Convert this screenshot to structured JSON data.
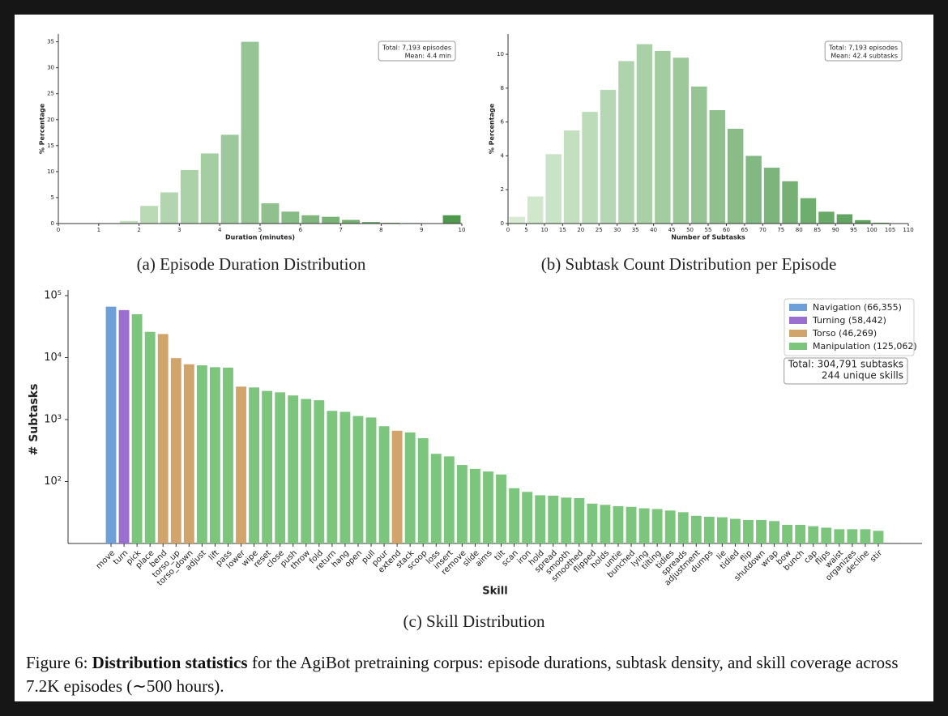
{
  "chart_data": [
    {
      "type": "histogram",
      "subcaption": "(a) Episode Duration Distribution",
      "xlabel": "Duration (minutes)",
      "ylabel": "% Percentage",
      "bins": [
        0,
        0.5,
        1,
        1.5,
        2,
        2.5,
        3,
        3.5,
        4,
        4.5,
        5,
        5.5,
        6,
        6.5,
        7,
        7.5,
        8,
        8.5,
        9,
        9.5,
        10
      ],
      "values": [
        0,
        0,
        0,
        0.5,
        3.4,
        6.0,
        10.3,
        13.5,
        17.1,
        35,
        3.9,
        2.3,
        1.6,
        1.3,
        0.7,
        0.3,
        0.15,
        0.1,
        0.05,
        1.6
      ],
      "colormap": [
        "#d6ebd2",
        "#4f994f"
      ],
      "xlim": [
        0,
        10
      ],
      "xticks": [
        0,
        1,
        2,
        3,
        4,
        5,
        6,
        7,
        8,
        9,
        10
      ],
      "ylim": [
        0,
        36.5
      ],
      "yticks": [
        0,
        5,
        10,
        15,
        20,
        25,
        30,
        35
      ],
      "annotation": [
        "Total: 7,193 episodes",
        "Mean: 4.4 min"
      ]
    },
    {
      "type": "histogram",
      "subcaption": "(b) Subtask Count Distribution per Episode",
      "xlabel": "Number of Subtasks",
      "ylabel": "% Percentage",
      "bins": [
        0,
        5,
        10,
        15,
        20,
        25,
        30,
        35,
        40,
        45,
        50,
        55,
        60,
        65,
        70,
        75,
        80,
        85,
        90,
        95,
        100,
        105,
        110
      ],
      "values": [
        0.4,
        1.6,
        4.1,
        5.5,
        6.6,
        7.9,
        9.6,
        10.6,
        10.2,
        9.8,
        8.1,
        6.7,
        5.6,
        4.0,
        3.3,
        2.5,
        1.5,
        0.7,
        0.55,
        0.2,
        0.05,
        0
      ],
      "colormap": [
        "#d6ebd2",
        "#4f994f"
      ],
      "xlim": [
        0,
        110
      ],
      "xticks": [
        0,
        5,
        10,
        15,
        20,
        25,
        30,
        35,
        40,
        45,
        50,
        55,
        60,
        65,
        70,
        75,
        80,
        85,
        90,
        95,
        100,
        105,
        110
      ],
      "ylim": [
        0,
        11.2
      ],
      "yticks": [
        0,
        2,
        4,
        6,
        8,
        10
      ],
      "annotation": [
        "Total: 7,193 episodes",
        "Mean: 42.4 subtasks"
      ]
    },
    {
      "type": "bar",
      "subcaption": "(c) Skill Distribution",
      "xlabel": "Skill",
      "ylabel": "# Subtasks",
      "log_scale": true,
      "categories": [
        "move",
        "turn",
        "pick",
        "place",
        "bend",
        "torso_up",
        "torso_down",
        "adjust",
        "lift",
        "pass",
        "lower",
        "wipe",
        "reset",
        "close",
        "push",
        "throw",
        "fold",
        "return",
        "hang",
        "open",
        "pull",
        "pour",
        "extend",
        "stack",
        "scoop",
        "loss",
        "insert",
        "remove",
        "slide",
        "aims",
        "tilt",
        "scan",
        "iron",
        "hold",
        "spread",
        "smooth",
        "smoothed",
        "flipped",
        "holds",
        "untie",
        "bunched",
        "lying",
        "tilting",
        "tidies",
        "spreads",
        "adjustment",
        "dumps",
        "lie",
        "tidied",
        "flip",
        "shutdown",
        "wrap",
        "bow",
        "bunch",
        "cap",
        "flips",
        "waist",
        "organizes",
        "decline",
        "stir"
      ],
      "values": [
        66355,
        58442,
        50000,
        26000,
        24000,
        9800,
        7800,
        7500,
        7000,
        6900,
        3400,
        3300,
        2900,
        2750,
        2450,
        2150,
        2050,
        1380,
        1330,
        1140,
        1080,
        780,
        660,
        620,
        500,
        280,
        255,
        185,
        160,
        145,
        130,
        78,
        68,
        60,
        59,
        55,
        54,
        44,
        42,
        40,
        39,
        37,
        36,
        34,
        32,
        28,
        27,
        26.5,
        25,
        24,
        24,
        23,
        20,
        20,
        19,
        18,
        17,
        17,
        17,
        16
      ],
      "colors": [
        "#6f9fd8",
        "#9b6fd0",
        "#7cc57c",
        "#7cc57c",
        "#d1a46c",
        "#d1a46c",
        "#d1a46c",
        "#7cc57c",
        "#7cc57c",
        "#7cc57c",
        "#d1a46c",
        "#7cc57c",
        "#7cc57c",
        "#7cc57c",
        "#7cc57c",
        "#7cc57c",
        "#7cc57c",
        "#7cc57c",
        "#7cc57c",
        "#7cc57c",
        "#7cc57c",
        "#7cc57c",
        "#d1a46c",
        "#7cc57c",
        "#7cc57c",
        "#7cc57c",
        "#7cc57c",
        "#7cc57c",
        "#7cc57c",
        "#7cc57c",
        "#7cc57c",
        "#7cc57c",
        "#7cc57c",
        "#7cc57c",
        "#7cc57c",
        "#7cc57c",
        "#7cc57c",
        "#7cc57c",
        "#7cc57c",
        "#7cc57c",
        "#7cc57c",
        "#7cc57c",
        "#7cc57c",
        "#7cc57c",
        "#7cc57c",
        "#7cc57c",
        "#7cc57c",
        "#7cc57c",
        "#7cc57c",
        "#7cc57c",
        "#7cc57c",
        "#7cc57c",
        "#7cc57c",
        "#7cc57c",
        "#7cc57c",
        "#7cc57c",
        "#7cc57c",
        "#7cc57c",
        "#7cc57c",
        "#7cc57c"
      ],
      "ylim": [
        10,
        100000
      ],
      "yticks": [
        {
          "value": 100,
          "label": "10²"
        },
        {
          "value": 1000,
          "label": "10³"
        },
        {
          "value": 10000,
          "label": "10⁴"
        },
        {
          "value": 100000,
          "label": "10⁵"
        }
      ],
      "legend": [
        {
          "name": "Navigation (66,355)",
          "color": "#6f9fd8"
        },
        {
          "name": "Turning (58,442)",
          "color": "#9b6fd0"
        },
        {
          "name": "Torso (46,269)",
          "color": "#d1a46c"
        },
        {
          "name": "Manipulation (125,062)",
          "color": "#7cc57c"
        }
      ],
      "legend_position": "upper right",
      "annotation": [
        "Total: 304,791 subtasks",
        "244 unique skills"
      ]
    }
  ],
  "figure_caption": {
    "label": "Figure 6:",
    "bold": "Distribution statistics",
    "text": "for the AgiBot pretraining corpus: episode durations, subtask density, and skill coverage across 7.2K episodes (∼500 hours)."
  }
}
